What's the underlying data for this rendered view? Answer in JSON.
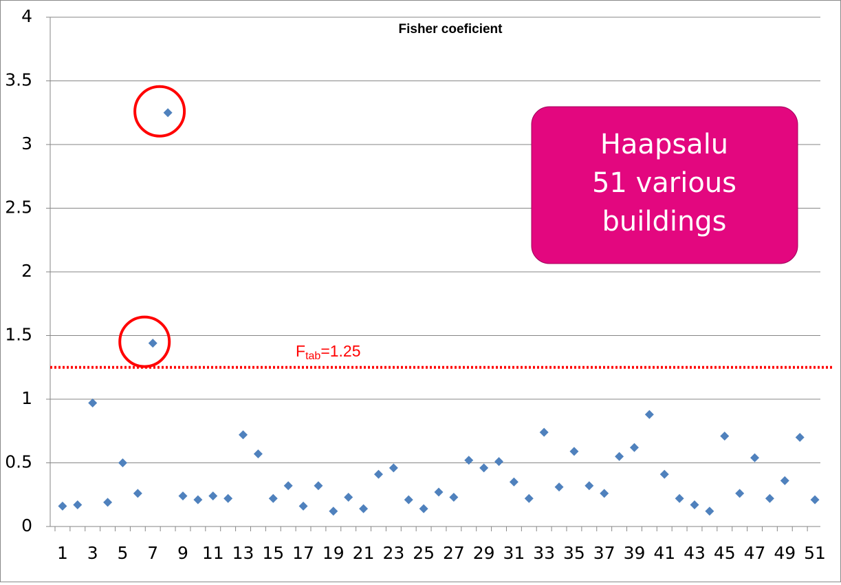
{
  "chart_data": {
    "type": "scatter",
    "title": "Fisher coeficient",
    "categories": [
      1,
      null,
      3,
      null,
      5,
      null,
      7,
      null,
      9,
      null,
      11,
      null,
      13,
      null,
      15,
      null,
      17,
      null,
      19,
      null,
      21,
      null,
      23,
      null,
      25,
      null,
      27,
      null,
      29,
      null,
      31,
      null,
      33,
      null,
      35,
      null,
      37,
      null,
      39,
      null,
      41,
      null,
      43,
      null,
      45,
      null,
      47,
      null,
      49,
      null,
      51
    ],
    "series": [
      {
        "name": "Fisher coeficient",
        "color": "#4f81bd",
        "values": [
          0.16,
          0.17,
          0.97,
          0.19,
          0.5,
          0.26,
          1.44,
          3.25,
          0.24,
          0.21,
          0.24,
          0.22,
          0.72,
          0.57,
          0.22,
          0.32,
          0.16,
          0.32,
          0.12,
          0.23,
          0.14,
          0.41,
          0.46,
          0.21,
          0.14,
          0.27,
          0.23,
          0.52,
          0.46,
          0.51,
          0.35,
          0.22,
          0.74,
          0.31,
          0.59,
          0.32,
          0.26,
          0.55,
          0.62,
          0.88,
          0.41,
          0.22,
          0.17,
          0.12,
          0.71,
          0.26,
          0.54,
          0.22,
          0.36,
          0.7,
          0.21
        ]
      }
    ],
    "ylim": [
      0,
      4
    ],
    "yticks": [
      0,
      0.5,
      1,
      1.5,
      2,
      2.5,
      3,
      3.5,
      4
    ],
    "grid": true,
    "threshold": {
      "value": 1.25,
      "symbol": "F",
      "subscript": "tab",
      "text": "=1.25",
      "color": "#ff0000"
    },
    "circled_categories": [
      7,
      8
    ],
    "circle_color": "#ff0000",
    "annotation": {
      "lines": [
        "Haapsalu",
        "51 various",
        "buildings"
      ],
      "color": "#e3077f"
    }
  }
}
